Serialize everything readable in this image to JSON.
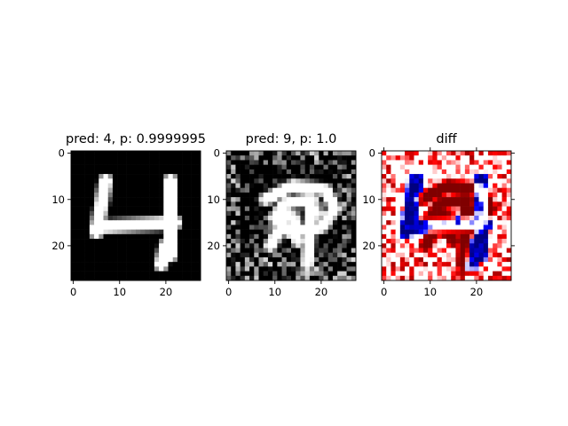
{
  "chart_data": [
    {
      "type": "heatmap",
      "title": "pred: 4, p: 0.9999995",
      "xticks": [
        0,
        10,
        20
      ],
      "yticks": [
        0,
        10,
        20
      ],
      "xlim": [
        -0.5,
        27.5
      ],
      "ylim": [
        27.5,
        -0.5
      ],
      "grid": false,
      "shape": [
        28,
        28
      ],
      "colormap": "gray",
      "content": "MNIST digit 4 (original input)"
    },
    {
      "type": "heatmap",
      "title": "pred: 9, p: 1.0",
      "xticks": [
        0,
        10,
        20
      ],
      "yticks": [
        0,
        10,
        20
      ],
      "xlim": [
        -0.5,
        27.5
      ],
      "ylim": [
        27.5,
        -0.5
      ],
      "grid": false,
      "shape": [
        28,
        28
      ],
      "colormap": "gray",
      "content": "adversarially perturbed digit"
    },
    {
      "type": "heatmap",
      "title": "diff",
      "xticks": [
        0,
        10,
        20
      ],
      "yticks": [
        0,
        10,
        20
      ],
      "xlim": [
        -0.5,
        27.5
      ],
      "ylim": [
        27.5,
        -0.5
      ],
      "grid": false,
      "shape": [
        28,
        28
      ],
      "colormap": "seismic",
      "content": "difference between perturbed and original"
    }
  ]
}
